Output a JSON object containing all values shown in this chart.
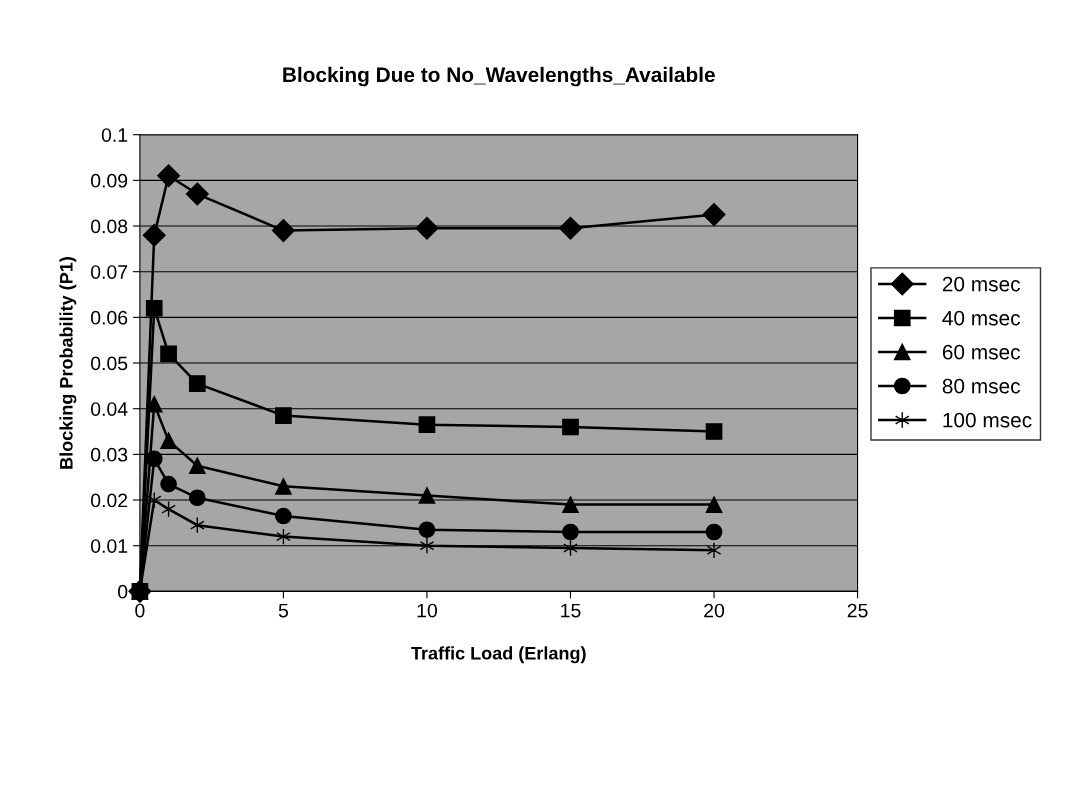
{
  "chart_data": {
    "type": "line",
    "title": "Blocking Due to No_Wavelengths_Available",
    "xlabel": "Traffic Load (Erlang)",
    "ylabel": "Blocking Probability (P1)",
    "x": [
      0,
      0.5,
      1,
      2,
      5,
      10,
      15,
      20
    ],
    "series": [
      {
        "name": "20 msec",
        "color": "#000000",
        "marker": "diamond",
        "values": [
          0,
          0.078,
          0.091,
          0.087,
          0.079,
          0.0795,
          0.0795,
          0.0825
        ]
      },
      {
        "name": "40 msec",
        "color": "#000000",
        "marker": "square",
        "values": [
          0,
          0.062,
          0.052,
          0.0455,
          0.0385,
          0.0365,
          0.036,
          0.035
        ]
      },
      {
        "name": "60 msec",
        "color": "#000000",
        "marker": "triangle",
        "values": [
          0,
          0.041,
          0.033,
          0.0275,
          0.023,
          0.021,
          0.019,
          0.019
        ]
      },
      {
        "name": "80 msec",
        "color": "#000000",
        "marker": "circle",
        "values": [
          0,
          0.029,
          0.0235,
          0.0205,
          0.0165,
          0.0135,
          0.013,
          0.013
        ]
      },
      {
        "name": "100 msec",
        "color": "#000000",
        "marker": "cross",
        "values": [
          0,
          0.02,
          0.018,
          0.0145,
          0.012,
          0.01,
          0.0095,
          0.009
        ]
      }
    ],
    "xlim": [
      0,
      25
    ],
    "xticks": [
      0,
      5,
      10,
      15,
      20,
      25
    ],
    "ylim": [
      0,
      0.1
    ],
    "yticks": [
      0,
      0.01,
      0.02,
      0.03,
      0.04,
      0.05,
      0.06,
      0.07,
      0.08,
      0.09,
      0.1
    ],
    "grid": "y",
    "legend": "right",
    "line_style": "solid"
  }
}
